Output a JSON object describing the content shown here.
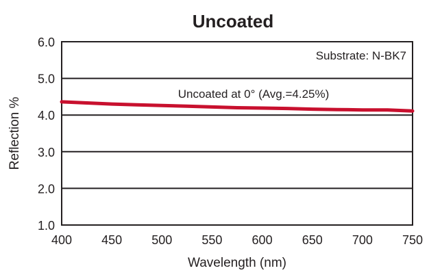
{
  "chart_data": {
    "type": "line",
    "title": "Uncoated",
    "xlabel": "Wavelength (nm)",
    "ylabel": "Reflection %",
    "xlim": [
      400,
      750
    ],
    "ylim": [
      1.0,
      6.0
    ],
    "x_ticks": [
      "400",
      "450",
      "500",
      "550",
      "600",
      "650",
      "700",
      "750"
    ],
    "y_ticks": [
      "1.0",
      "2.0",
      "3.0",
      "4.0",
      "5.0",
      "6.0"
    ],
    "grid": "horizontal",
    "annotations": {
      "substrate": "Substrate: N-BK7",
      "series_label": "Uncoated at 0°  (Avg.=4.25%)"
    },
    "series": [
      {
        "color": "#c8102e",
        "x": [
          400,
          425,
          450,
          475,
          500,
          525,
          550,
          575,
          600,
          625,
          650,
          675,
          700,
          725,
          750
        ],
        "y": [
          4.36,
          4.33,
          4.3,
          4.28,
          4.26,
          4.24,
          4.22,
          4.2,
          4.19,
          4.18,
          4.16,
          4.15,
          4.14,
          4.14,
          4.11
        ]
      }
    ]
  }
}
